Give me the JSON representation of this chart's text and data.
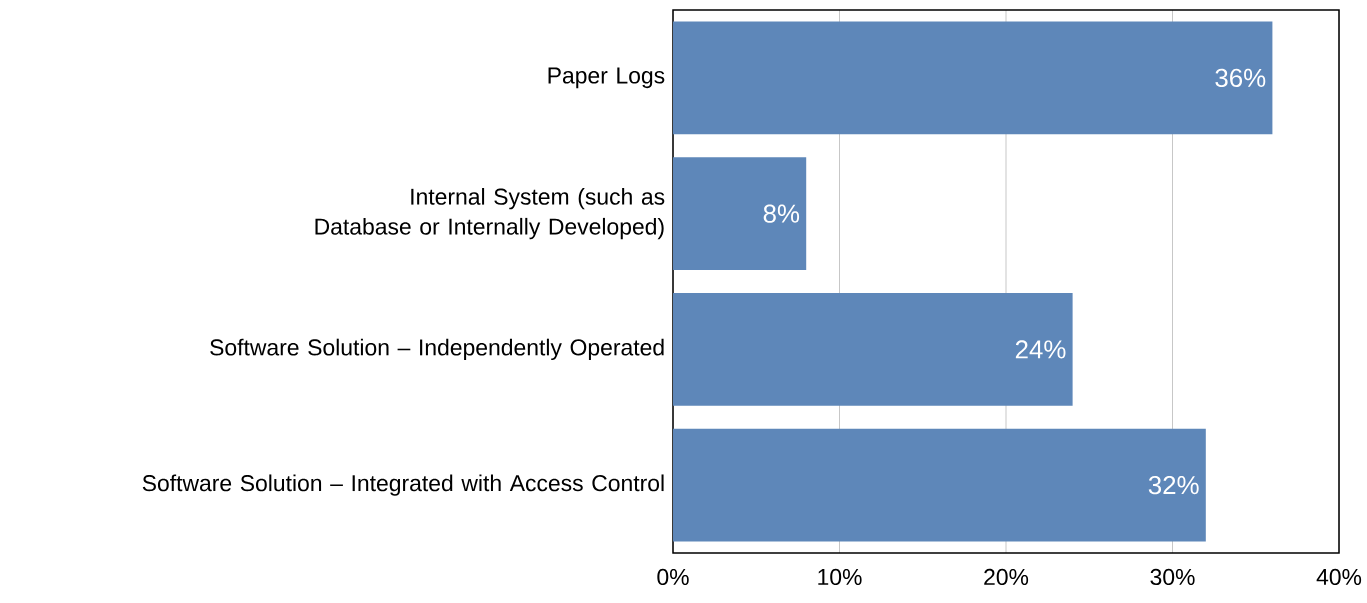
{
  "chart_data": {
    "type": "bar",
    "orientation": "horizontal",
    "categories": [
      "Paper Logs",
      "Internal System (such as Database or Internally Developed)",
      "Software Solution – Independently Operated",
      "Software Solution – Integrated with Access Control"
    ],
    "values": [
      36,
      8,
      24,
      32
    ],
    "value_labels": [
      "36%",
      "8%",
      "24%",
      "32%"
    ],
    "color": "#5e87b9",
    "xlim": [
      0,
      40
    ],
    "xticks": [
      {
        "value": 0,
        "label": "0%"
      },
      {
        "value": 10,
        "label": "10%"
      },
      {
        "value": 20,
        "label": "20%"
      },
      {
        "value": 30,
        "label": "30%"
      },
      {
        "value": 40,
        "label": "40%"
      }
    ],
    "grid": "x"
  }
}
